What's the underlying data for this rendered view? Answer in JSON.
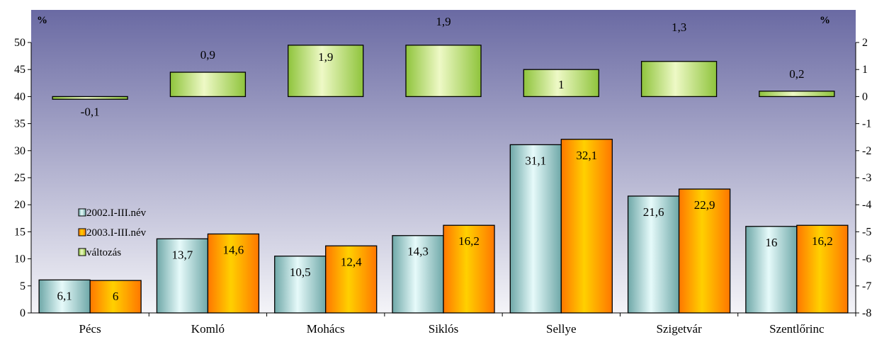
{
  "chart_data": {
    "type": "bar",
    "categories": [
      "Pécs",
      "Komló",
      "Mohács",
      "Siklós",
      "Sellye",
      "Szigetvár",
      "Szentlőrinc"
    ],
    "series": [
      {
        "name": "2002.I-III.név",
        "axis": "left",
        "values": [
          6.1,
          13.7,
          10.5,
          14.3,
          31.1,
          21.6,
          16
        ],
        "labels": [
          "6,1",
          "13,7",
          "10,5",
          "14,3",
          "31,1",
          "21,6",
          "16"
        ]
      },
      {
        "name": "2003.I-III.név",
        "axis": "left",
        "values": [
          6,
          14.6,
          12.4,
          16.2,
          32.1,
          22.9,
          16.2
        ],
        "labels": [
          "6",
          "14,6",
          "12,4",
          "16,2",
          "32,1",
          "22,9",
          "16,2"
        ]
      },
      {
        "name": "változás",
        "axis": "right",
        "values": [
          -0.1,
          0.9,
          1.9,
          1.9,
          1,
          1.3,
          0.2
        ],
        "labels": [
          "-0,1",
          "0,9",
          "1,9",
          "1,9",
          "1",
          "1,3",
          "0,2"
        ]
      }
    ],
    "y_left": {
      "unit": "%",
      "ylim": [
        0,
        50
      ],
      "ticks": [
        0,
        5,
        10,
        15,
        20,
        25,
        30,
        35,
        40,
        45,
        50
      ]
    },
    "y_right": {
      "unit": "%",
      "ylim": [
        -8,
        2
      ],
      "ticks": [
        -8,
        -7,
        -6,
        -5,
        -4,
        -3,
        -2,
        -1,
        0,
        1,
        2
      ]
    },
    "legend_position": "left, inside plot",
    "colors": {
      "s2002_light": "#e6fafa",
      "s2002_dark": "#6fa8a8",
      "s2003_light": "#ffd000",
      "s2003_dark": "#ff7700",
      "change_light": "#eef9c6",
      "change_dark": "#8fc43c",
      "bg_top": "#6a6aa3",
      "bg_bottom": "#f4f4f8"
    }
  }
}
